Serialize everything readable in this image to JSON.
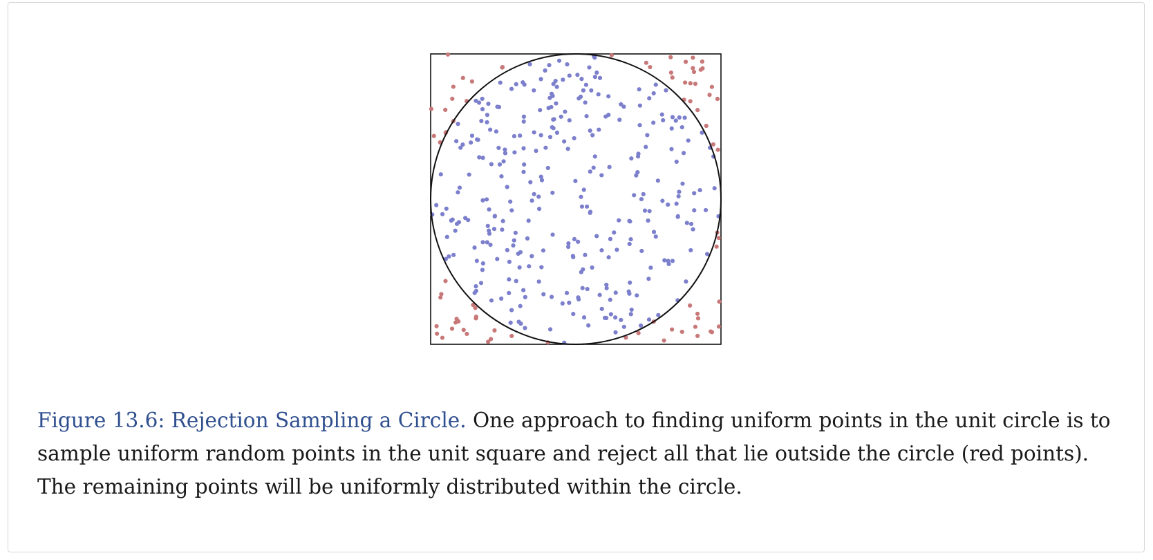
{
  "figure": {
    "label": "Figure 13.6: Rejection Sampling a Circle.",
    "caption_text": " One approach to finding uniform points in the unit circle is to sample uniform random points in the unit square and reject all that lie outside the circle (red points). The remaining points will be uniformly distributed within the circle.",
    "colors": {
      "accepted": "#7b7fcc",
      "rejected": "#c87878",
      "caption_label": "#2f4f8f",
      "outline": "#111111"
    }
  },
  "chart_data": {
    "type": "scatter",
    "xlim": [
      -1,
      1
    ],
    "ylim": [
      -1,
      1
    ],
    "grid": false,
    "circle": {
      "cx": 0,
      "cy": 0,
      "r": 1
    },
    "sample_count": 400,
    "seed": 1336
  }
}
